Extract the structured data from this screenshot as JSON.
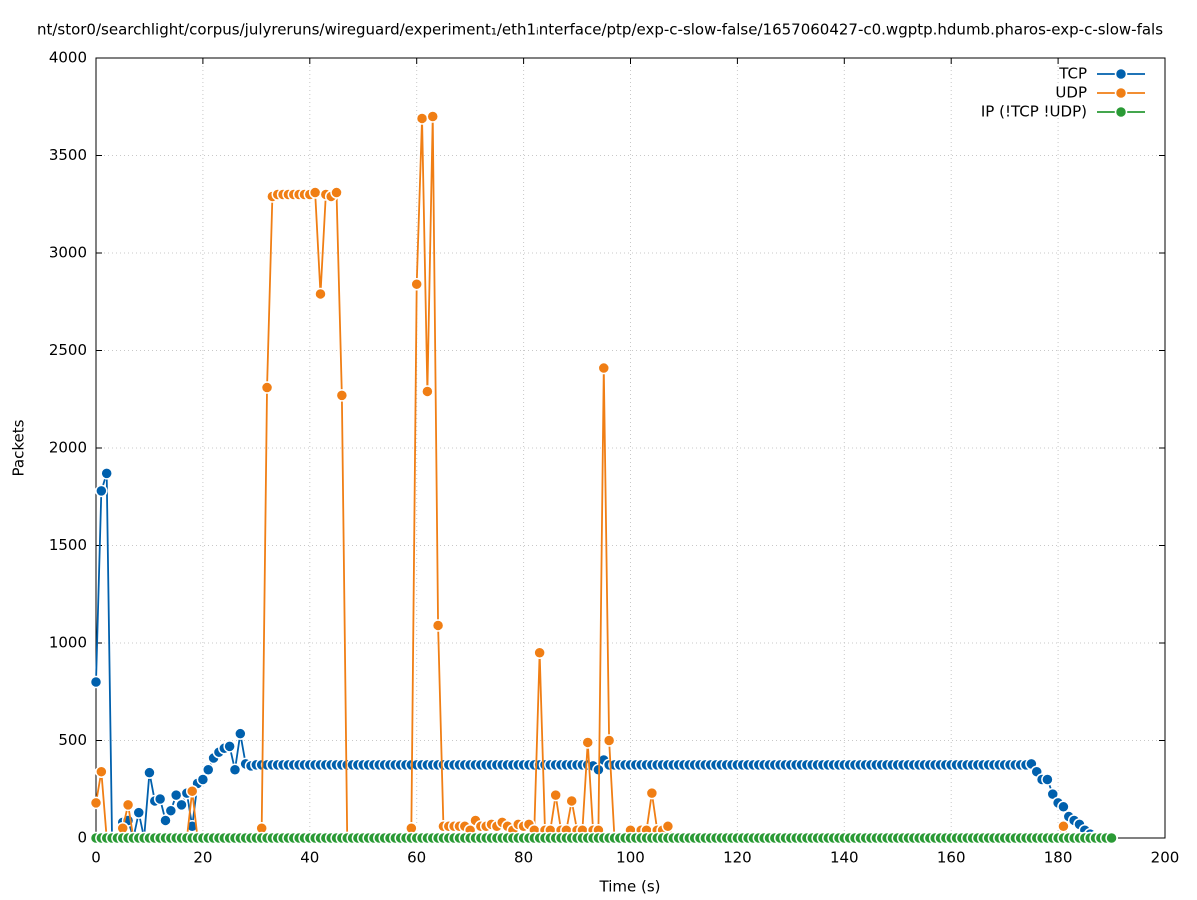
{
  "chart_data": {
    "type": "line",
    "title": "nt/stor0/searchlight/corpus/julyreruns/wireguard/experiment₁/eth1ᵢnterface/ptp/exp-c-slow-false/1657060427-c0.wgptp.hdumb.pharos-exp-c-slow-fals",
    "x_label": "Time (s)",
    "y_label": "Packets",
    "xlim": [
      0,
      200
    ],
    "xticks": [
      0,
      20,
      40,
      60,
      80,
      100,
      120,
      140,
      160,
      180,
      200
    ],
    "ylim": [
      0,
      4000
    ],
    "yticks": [
      0,
      500,
      1000,
      1500,
      2000,
      2500,
      3000,
      3500,
      4000
    ],
    "grid": true,
    "legend": "top-right",
    "x": [
      0,
      1,
      2,
      3,
      4,
      5,
      6,
      7,
      8,
      9,
      10,
      11,
      12,
      13,
      14,
      15,
      16,
      17,
      18,
      19,
      20,
      21,
      22,
      23,
      24,
      25,
      26,
      27,
      28,
      29,
      30,
      31,
      32,
      33,
      34,
      35,
      36,
      37,
      38,
      39,
      40,
      41,
      42,
      43,
      44,
      45,
      46,
      47,
      48,
      49,
      50,
      51,
      52,
      53,
      54,
      55,
      56,
      57,
      58,
      59,
      60,
      61,
      62,
      63,
      64,
      65,
      66,
      67,
      68,
      69,
      70,
      71,
      72,
      73,
      74,
      75,
      76,
      77,
      78,
      79,
      80,
      81,
      82,
      83,
      84,
      85,
      86,
      87,
      88,
      89,
      90,
      91,
      92,
      93,
      94,
      95,
      96,
      97,
      98,
      99,
      100,
      101,
      102,
      103,
      104,
      105,
      106,
      107,
      108,
      109,
      110,
      111,
      112,
      113,
      114,
      115,
      116,
      117,
      118,
      119,
      120,
      121,
      122,
      123,
      124,
      125,
      126,
      127,
      128,
      129,
      130,
      131,
      132,
      133,
      134,
      135,
      136,
      137,
      138,
      139,
      140,
      141,
      142,
      143,
      144,
      145,
      146,
      147,
      148,
      149,
      150,
      151,
      152,
      153,
      154,
      155,
      156,
      157,
      158,
      159,
      160,
      161,
      162,
      163,
      164,
      165,
      166,
      167,
      168,
      169,
      170,
      171,
      172,
      173,
      174,
      175,
      176,
      177,
      178,
      179,
      180,
      181,
      182,
      183,
      184,
      185,
      186,
      187,
      188,
      189,
      190
    ],
    "series": [
      {
        "name": "TCP",
        "color": "#0060ad",
        "values": [
          800,
          1780,
          1870,
          0,
          0,
          80,
          90,
          0,
          130,
          0,
          335,
          190,
          200,
          90,
          140,
          220,
          170,
          230,
          60,
          280,
          300,
          350,
          410,
          440,
          460,
          470,
          350,
          535,
          380,
          370,
          375,
          375,
          375,
          375,
          375,
          375,
          375,
          375,
          375,
          375,
          375,
          375,
          375,
          375,
          375,
          375,
          375,
          375,
          375,
          375,
          375,
          375,
          375,
          375,
          375,
          375,
          375,
          375,
          375,
          375,
          375,
          375,
          375,
          375,
          375,
          375,
          375,
          375,
          375,
          375,
          375,
          375,
          375,
          375,
          375,
          375,
          375,
          375,
          375,
          375,
          375,
          375,
          375,
          375,
          375,
          375,
          375,
          375,
          375,
          375,
          375,
          375,
          375,
          370,
          350,
          400,
          375,
          375,
          375,
          375,
          375,
          375,
          375,
          375,
          375,
          375,
          375,
          375,
          375,
          375,
          375,
          375,
          375,
          375,
          375,
          375,
          375,
          375,
          375,
          375,
          375,
          375,
          375,
          375,
          375,
          375,
          375,
          375,
          375,
          375,
          375,
          375,
          375,
          375,
          375,
          375,
          375,
          375,
          375,
          375,
          375,
          375,
          375,
          375,
          375,
          375,
          375,
          375,
          375,
          375,
          375,
          375,
          375,
          375,
          375,
          375,
          375,
          375,
          375,
          375,
          375,
          375,
          375,
          375,
          375,
          375,
          375,
          375,
          375,
          375,
          375,
          375,
          375,
          375,
          375,
          380,
          340,
          300,
          300,
          225,
          180,
          160,
          110,
          90,
          70,
          40,
          20,
          5,
          0,
          0,
          0
        ]
      },
      {
        "name": "UDP",
        "color": "#f07e14",
        "values": [
          180,
          340,
          0,
          0,
          0,
          50,
          170,
          0,
          0,
          0,
          0,
          0,
          0,
          0,
          0,
          0,
          0,
          0,
          240,
          0,
          0,
          0,
          0,
          0,
          0,
          0,
          0,
          0,
          0,
          0,
          0,
          50,
          2310,
          3290,
          3300,
          3300,
          3300,
          3300,
          3300,
          3300,
          3300,
          3310,
          2790,
          3300,
          3290,
          3310,
          2270,
          0,
          0,
          0,
          0,
          0,
          0,
          0,
          0,
          0,
          0,
          0,
          0,
          50,
          2840,
          3690,
          2290,
          3700,
          1090,
          60,
          60,
          60,
          60,
          60,
          40,
          90,
          60,
          60,
          70,
          60,
          80,
          60,
          40,
          70,
          60,
          70,
          40,
          950,
          40,
          40,
          220,
          40,
          40,
          190,
          40,
          40,
          490,
          40,
          40,
          2410,
          500,
          0,
          0,
          0,
          40,
          0,
          40,
          40,
          230,
          40,
          40,
          60,
          0,
          0,
          0,
          0,
          0,
          0,
          0,
          0,
          0,
          0,
          0,
          0,
          0,
          0,
          0,
          0,
          0,
          0,
          0,
          0,
          0,
          0,
          0,
          0,
          0,
          0,
          0,
          0,
          0,
          0,
          0,
          0,
          0,
          0,
          0,
          0,
          0,
          0,
          0,
          0,
          0,
          0,
          0,
          0,
          0,
          0,
          0,
          0,
          0,
          0,
          0,
          0,
          0,
          0,
          0,
          0,
          0,
          0,
          0,
          0,
          0,
          0,
          0,
          0,
          0,
          0,
          0,
          0,
          0,
          0,
          0,
          0,
          0,
          60,
          0,
          0,
          0,
          0,
          0,
          0,
          0,
          0,
          0
        ]
      },
      {
        "name": "IP (!TCP  !UDP)",
        "color": "#2a9a35",
        "values": [
          0,
          0,
          0,
          0,
          0,
          0,
          0,
          0,
          0,
          0,
          0,
          0,
          0,
          0,
          0,
          0,
          0,
          0,
          0,
          0,
          0,
          0,
          0,
          0,
          0,
          0,
          0,
          0,
          0,
          0,
          0,
          0,
          0,
          0,
          0,
          0,
          0,
          0,
          0,
          0,
          0,
          0,
          0,
          0,
          0,
          0,
          0,
          0,
          0,
          0,
          0,
          0,
          0,
          0,
          0,
          0,
          0,
          0,
          0,
          0,
          0,
          0,
          0,
          0,
          0,
          0,
          0,
          0,
          0,
          0,
          0,
          0,
          0,
          0,
          0,
          0,
          0,
          0,
          0,
          0,
          0,
          0,
          0,
          0,
          0,
          0,
          0,
          0,
          0,
          0,
          0,
          0,
          0,
          0,
          0,
          0,
          0,
          0,
          0,
          0,
          0,
          0,
          0,
          0,
          0,
          0,
          0,
          0,
          0,
          0,
          0,
          0,
          0,
          0,
          0,
          0,
          0,
          0,
          0,
          0,
          0,
          0,
          0,
          0,
          0,
          0,
          0,
          0,
          0,
          0,
          0,
          0,
          0,
          0,
          0,
          0,
          0,
          0,
          0,
          0,
          0,
          0,
          0,
          0,
          0,
          0,
          0,
          0,
          0,
          0,
          0,
          0,
          0,
          0,
          0,
          0,
          0,
          0,
          0,
          0,
          0,
          0,
          0,
          0,
          0,
          0,
          0,
          0,
          0,
          0,
          0,
          0,
          0,
          0,
          0,
          0,
          0,
          0,
          0,
          0,
          0,
          0,
          0,
          0,
          0,
          0,
          0,
          0,
          0,
          0,
          0
        ]
      }
    ]
  }
}
